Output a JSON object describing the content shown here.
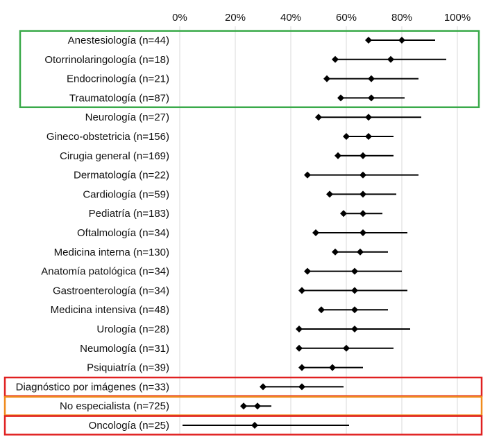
{
  "chart_data": {
    "type": "forest",
    "title": "",
    "xlim": [
      0,
      100
    ],
    "ticks": [
      0,
      20,
      40,
      60,
      80,
      100
    ],
    "tick_labels": [
      "0%",
      "20%",
      "40%",
      "60%",
      "80%",
      "100%"
    ],
    "grid": true,
    "rows": [
      {
        "label": "Anestesiología (n=44)",
        "ci_low": 68,
        "ci_high": 92,
        "points": [
          68,
          80
        ]
      },
      {
        "label": "Otorrinolaringología (n=18)",
        "ci_low": 56,
        "ci_high": 96,
        "points": [
          56,
          76
        ]
      },
      {
        "label": "Endocrinología (n=21)",
        "ci_low": 53,
        "ci_high": 86,
        "points": [
          53,
          69
        ]
      },
      {
        "label": "Traumatología (n=87)",
        "ci_low": 58,
        "ci_high": 81,
        "points": [
          58,
          69
        ]
      },
      {
        "label": "Neurología (n=27)",
        "ci_low": 50,
        "ci_high": 87,
        "points": [
          50,
          68
        ]
      },
      {
        "label": "Gineco-obstetricia (n=156)",
        "ci_low": 60,
        "ci_high": 77,
        "points": [
          60,
          68
        ]
      },
      {
        "label": "Cirugia general (n=169)",
        "ci_low": 57,
        "ci_high": 77,
        "points": [
          57,
          66
        ]
      },
      {
        "label": "Dermatología (n=22)",
        "ci_low": 46,
        "ci_high": 86,
        "points": [
          46,
          66
        ]
      },
      {
        "label": "Cardiología (n=59)",
        "ci_low": 54,
        "ci_high": 78,
        "points": [
          54,
          66
        ]
      },
      {
        "label": "Pediatría (n=183)",
        "ci_low": 59,
        "ci_high": 73,
        "points": [
          59,
          66
        ]
      },
      {
        "label": "Oftalmología (n=34)",
        "ci_low": 49,
        "ci_high": 82,
        "points": [
          49,
          66
        ]
      },
      {
        "label": "Medicina interna (n=130)",
        "ci_low": 56,
        "ci_high": 75,
        "points": [
          56,
          65
        ]
      },
      {
        "label": "Anatomía patológica (n=34)",
        "ci_low": 46,
        "ci_high": 80,
        "points": [
          46,
          63
        ]
      },
      {
        "label": "Gastroenterología (n=34)",
        "ci_low": 44,
        "ci_high": 82,
        "points": [
          44,
          63
        ]
      },
      {
        "label": "Medicina intensiva (n=48)",
        "ci_low": 51,
        "ci_high": 75,
        "points": [
          51,
          63
        ]
      },
      {
        "label": "Urología  (n=28)",
        "ci_low": 43,
        "ci_high": 83,
        "points": [
          43,
          63
        ]
      },
      {
        "label": "Neumología (n=31)",
        "ci_low": 43,
        "ci_high": 77,
        "points": [
          43,
          60
        ]
      },
      {
        "label": "Psiquiatría (n=39)",
        "ci_low": 44,
        "ci_high": 66,
        "points": [
          44,
          55
        ]
      },
      {
        "label": "Diagnóstico por imágenes (n=33)",
        "ci_low": 30,
        "ci_high": 59,
        "points": [
          30,
          44
        ]
      },
      {
        "label": "No especialista (n=725)",
        "ci_low": 23,
        "ci_high": 33,
        "points": [
          23,
          28
        ]
      },
      {
        "label": "Oncología (n=25)",
        "ci_low": 1,
        "ci_high": 61,
        "points": [
          27
        ]
      }
    ],
    "highlight_groups": [
      {
        "name": "top-group",
        "color": "#3aaa4a",
        "rows": [
          0,
          3
        ]
      },
      {
        "name": "diagnostico-group",
        "color": "#e02020",
        "rows": [
          18,
          18
        ]
      },
      {
        "name": "no-especialista-group",
        "color": "#f08a1c",
        "rows": [
          19,
          19
        ]
      },
      {
        "name": "oncologia-group",
        "color": "#e02020",
        "rows": [
          20,
          20
        ]
      }
    ]
  }
}
